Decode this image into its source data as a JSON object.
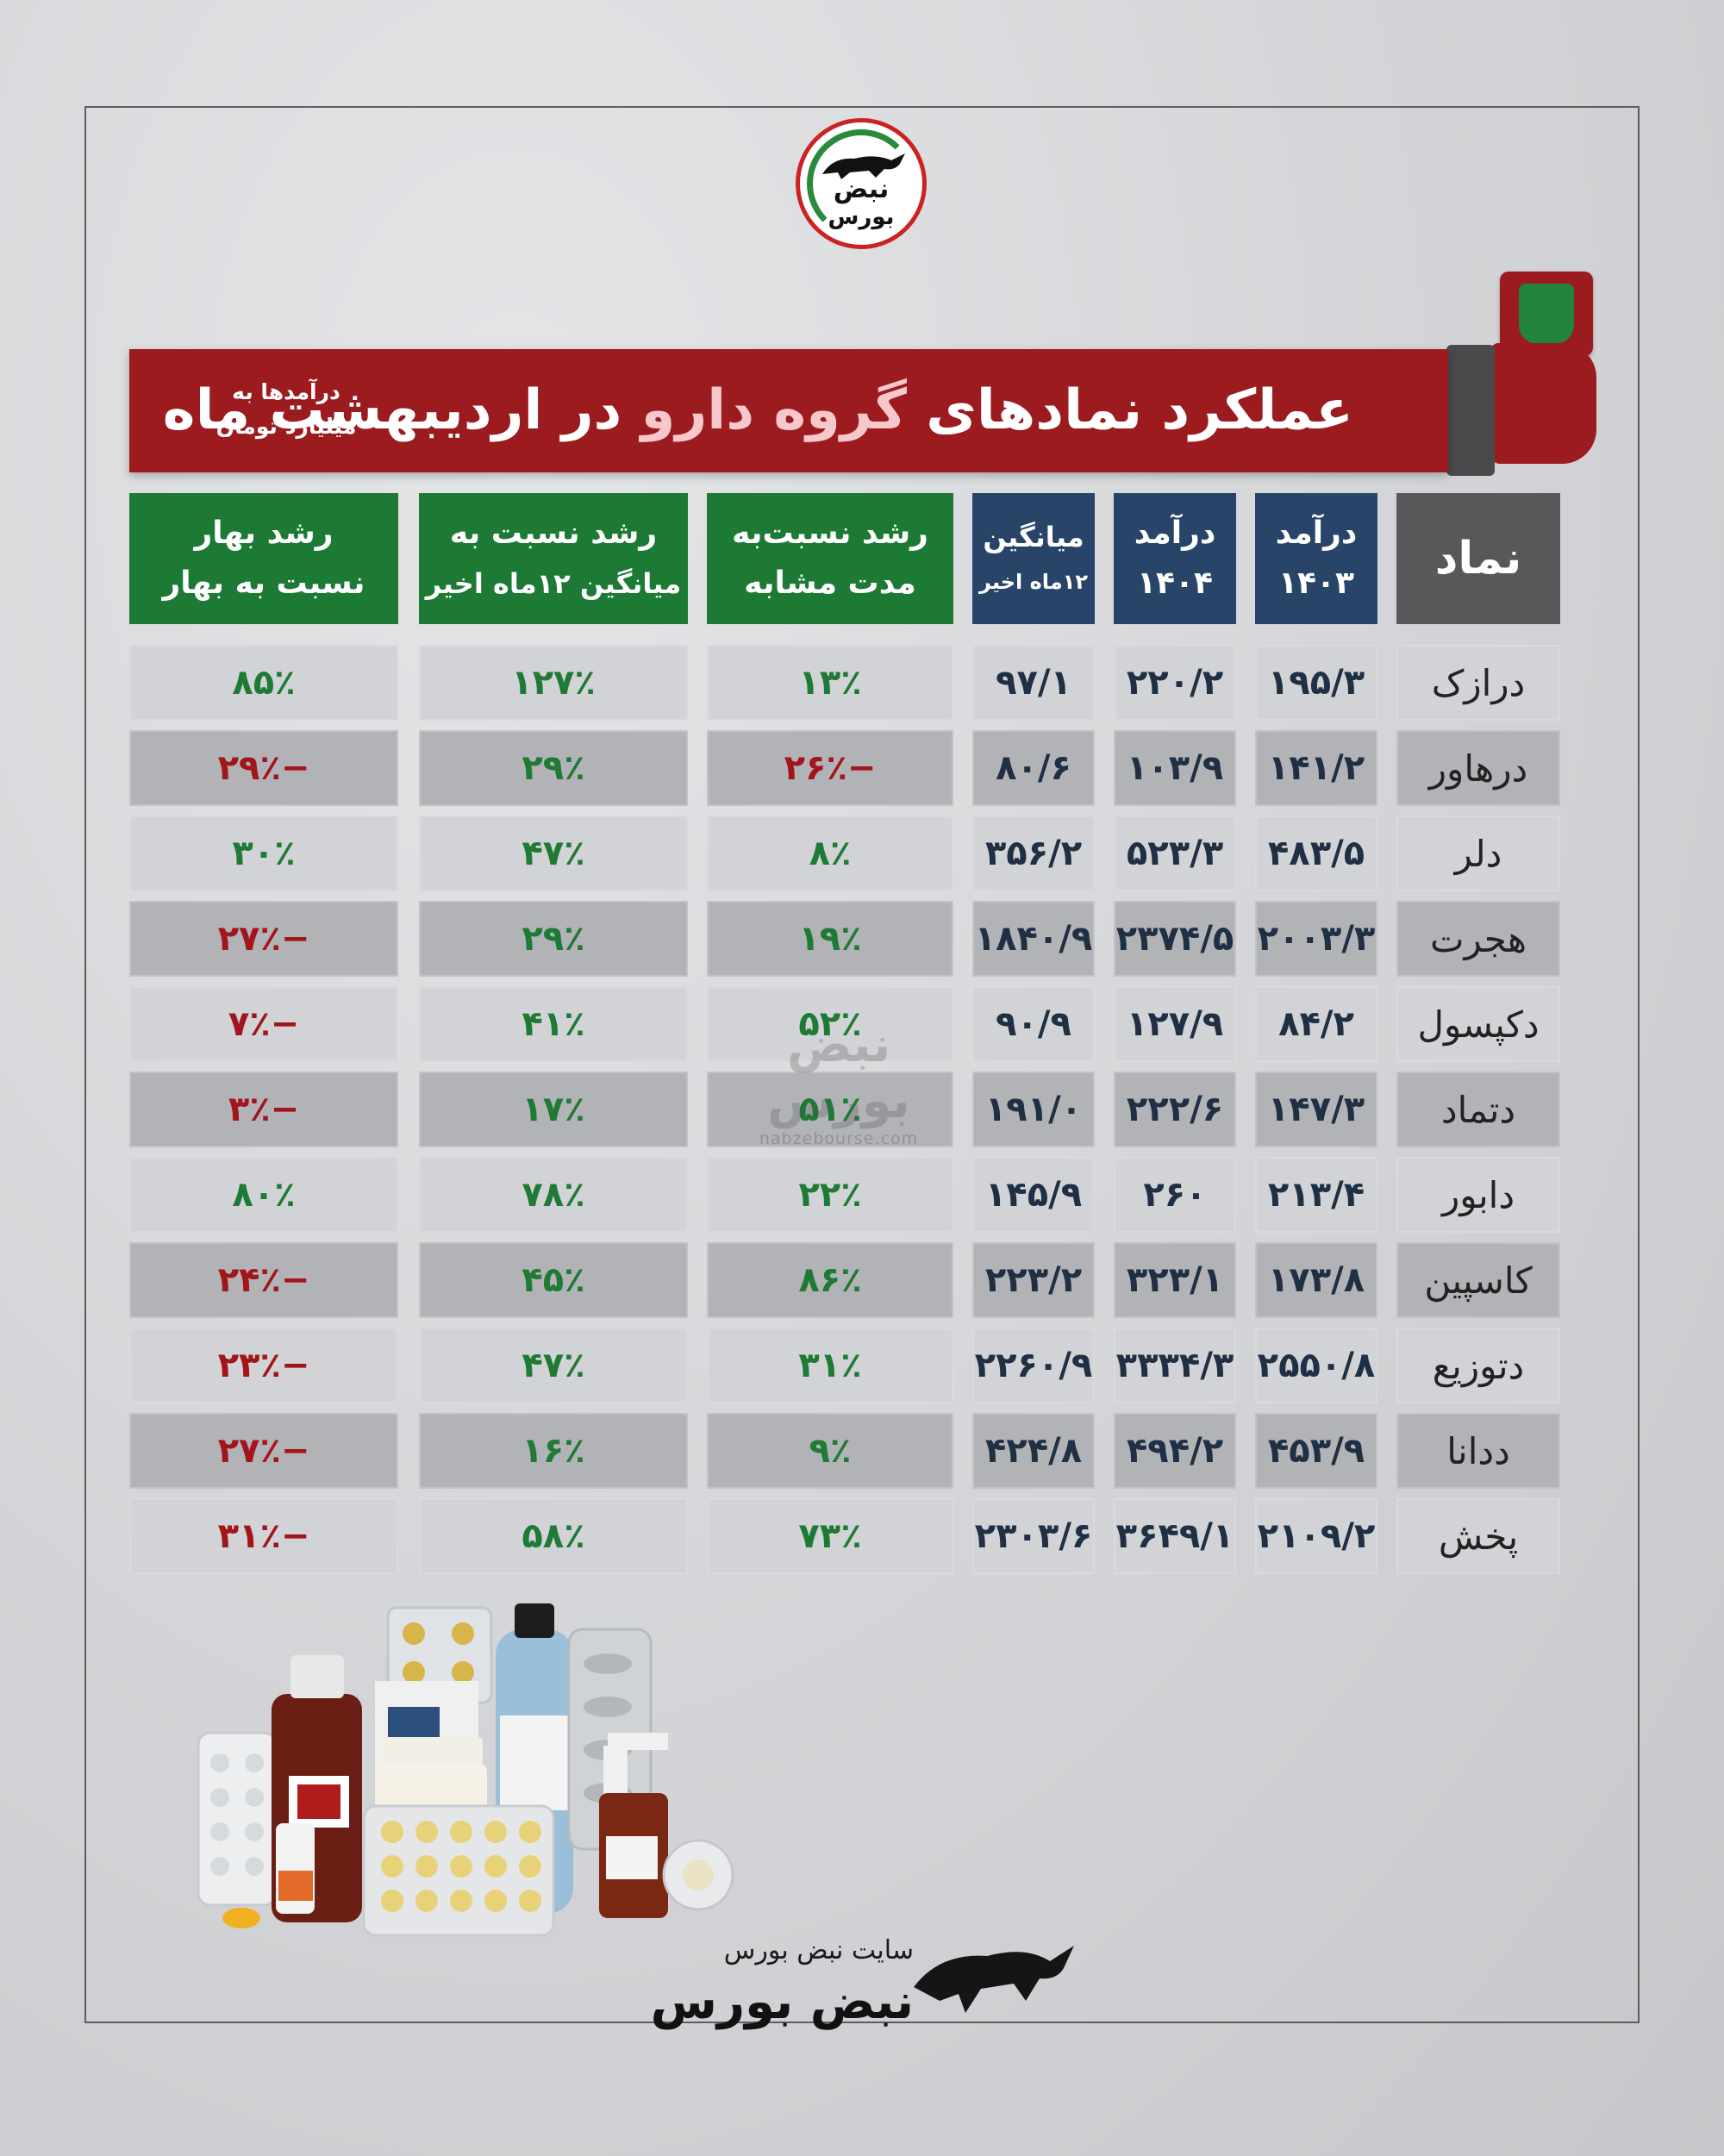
{
  "logo": {
    "line1": "نبض",
    "line2": "بورس"
  },
  "title": {
    "part1": "عملکرد نمادهای",
    "highlight": "گروه دارو",
    "part2": "در اردیبهشت ماه",
    "unit_line1": "درآمدها به",
    "unit_line2": "میلیارد تومان"
  },
  "headers": {
    "symbol": "نماد",
    "rev1403_l1": "درآمد",
    "rev1403_l2": "۱۴۰۳",
    "rev1404_l1": "درآمد",
    "rev1404_l2": "۱۴۰۴",
    "avg_l1": "میانگین",
    "avg_l2": "۱۲ماه اخیر",
    "yoy_l1": "رشد نسبت‌به",
    "yoy_l2": "مدت مشابه",
    "vsavg_l1": "رشد نسبت به",
    "vsavg_l2": "میانگین ۱۲ماه اخیر",
    "vsspring_l1": "رشد بهار",
    "vsspring_l2": "نسبت به بهار"
  },
  "rows": [
    {
      "name": "درازک",
      "r1403": "۱۹۵/۳",
      "r1404": "۲۲۰/۲",
      "avg": "۹۷/۱",
      "yoy": "۱۳٪",
      "vsavg": "۱۲۷٪",
      "spring": "۸۵٪"
    },
    {
      "name": "درهاور",
      "r1403": "۱۴۱/۲",
      "r1404": "۱۰۳/۹",
      "avg": "۸۰/۶",
      "yoy": "−۲۶٪",
      "vsavg": "۲۹٪",
      "spring": "−۲۹٪"
    },
    {
      "name": "دلر",
      "r1403": "۴۸۳/۵",
      "r1404": "۵۲۳/۳",
      "avg": "۳۵۶/۲",
      "yoy": "۸٪",
      "vsavg": "۴۷٪",
      "spring": "۳۰٪"
    },
    {
      "name": "هجرت",
      "r1403": "۲۰۰۳/۳",
      "r1404": "۲۳۷۴/۵",
      "avg": "۱۸۴۰/۹",
      "yoy": "۱۹٪",
      "vsavg": "۲۹٪",
      "spring": "−۲۷٪"
    },
    {
      "name": "دکپسول",
      "r1403": "۸۴/۲",
      "r1404": "۱۲۷/۹",
      "avg": "۹۰/۹",
      "yoy": "۵۲٪",
      "vsavg": "۴۱٪",
      "spring": "−۷٪"
    },
    {
      "name": "دتماد",
      "r1403": "۱۴۷/۳",
      "r1404": "۲۲۲/۶",
      "avg": "۱۹۱/۰",
      "yoy": "۵۱٪",
      "vsavg": "۱۷٪",
      "spring": "−۳٪"
    },
    {
      "name": "دابور",
      "r1403": "۲۱۳/۴",
      "r1404": "۲۶۰",
      "avg": "۱۴۵/۹",
      "yoy": "۲۲٪",
      "vsavg": "۷۸٪",
      "spring": "۸۰٪"
    },
    {
      "name": "کاسپین",
      "r1403": "۱۷۳/۸",
      "r1404": "۳۲۳/۱",
      "avg": "۲۲۳/۲",
      "yoy": "۸۶٪",
      "vsavg": "۴۵٪",
      "spring": "−۲۴٪"
    },
    {
      "name": "دتوزیع",
      "r1403": "۲۵۵۰/۸",
      "r1404": "۳۳۳۴/۳",
      "avg": "۲۲۶۰/۹",
      "yoy": "۳۱٪",
      "vsavg": "۴۷٪",
      "spring": "−۲۳٪"
    },
    {
      "name": "ددانا",
      "r1403": "۴۵۳/۹",
      "r1404": "۴۹۴/۲",
      "avg": "۴۲۴/۸",
      "yoy": "۹٪",
      "vsavg": "۱۶٪",
      "spring": "−۲۷٪"
    },
    {
      "name": "پخش",
      "r1403": "۲۱۰۹/۲",
      "r1404": "۳۶۴۹/۱",
      "avg": "۲۳۰۳/۶",
      "yoy": "۷۳٪",
      "vsavg": "۵۸٪",
      "spring": "−۳۱٪"
    }
  ],
  "watermark": {
    "brand": "نبض بورس",
    "url": "nabzebourse.com"
  },
  "footer": {
    "site_label": "سایت نبض بورس",
    "brand": "نبض بورس"
  },
  "colors": {
    "header_blue": "#284569",
    "header_green": "#1c7a35",
    "banner_red": "#9b1b1f",
    "positive": "#1e7a34",
    "negative": "#a1151b"
  },
  "icons": [
    "bull-icon",
    "fist-meter-icon",
    "medicine-bottles-illustration"
  ]
}
